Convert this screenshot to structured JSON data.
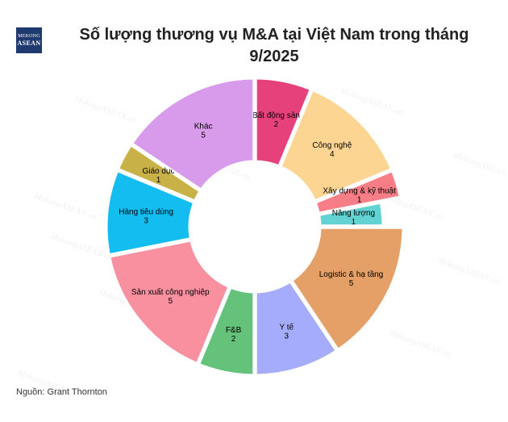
{
  "logo": {
    "line1": "MEKONG",
    "line2": "ASEAN"
  },
  "watermark": "MekongASEAN.vn",
  "source": "Nguồn: Grant Thornton",
  "chart_data": {
    "type": "pie",
    "donut": true,
    "title": "Số lượng thương vụ M&A tại Việt Nam trong tháng 9/2025",
    "slices": [
      {
        "label": "Bất động sản",
        "value": 2,
        "color": "#e6417a"
      },
      {
        "label": "Công nghệ",
        "value": 4,
        "color": "#fcd593"
      },
      {
        "label": "Xây dựng & kỹ thuật",
        "value": 1,
        "color": "#f77e87"
      },
      {
        "label": "Năng lượng",
        "value": 1,
        "color": "#62d2d3"
      },
      {
        "label": "Logistic & hạ tầng",
        "value": 5,
        "color": "#e4a066"
      },
      {
        "label": "Y tế",
        "value": 3,
        "color": "#a6acfc"
      },
      {
        "label": "F&B",
        "value": 2,
        "color": "#64c27a"
      },
      {
        "label": "Sản xuất công nghiệp",
        "value": 5,
        "color": "#f890a0"
      },
      {
        "label": "Hàng tiêu dùng",
        "value": 3,
        "color": "#13bdf0"
      },
      {
        "label": "Giáo dục",
        "value": 1,
        "color": "#c8b248"
      },
      {
        "label": "Khác",
        "value": 5,
        "color": "#d89bec"
      }
    ]
  }
}
